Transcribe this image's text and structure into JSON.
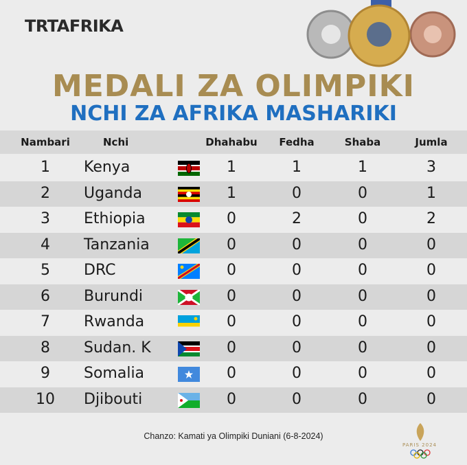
{
  "brand": "TRTAFRIKA",
  "title": "MEDALI ZA OLIMPIKI",
  "subtitle": "NCHI ZA AFRIKA MASHARIKI",
  "table": {
    "headers": [
      "Nambari",
      "Nchi",
      "Dhahabu",
      "Fedha",
      "Shaba",
      "Jumla"
    ],
    "rows": [
      [
        "1",
        "Kenya",
        "1",
        "1",
        "1",
        "3"
      ],
      [
        "2",
        "Uganda",
        "1",
        "0",
        "0",
        "1"
      ],
      [
        "3",
        "Ethiopia",
        "0",
        "2",
        "0",
        "2"
      ],
      [
        "4",
        "Tanzania",
        "0",
        "0",
        "0",
        "0"
      ],
      [
        "5",
        "DRC",
        "0",
        "0",
        "0",
        "0"
      ],
      [
        "6",
        "Burundi",
        "0",
        "0",
        "0",
        "0"
      ],
      [
        "7",
        "Rwanda",
        "0",
        "0",
        "0",
        "0"
      ],
      [
        "8",
        "Sudan. K",
        "0",
        "0",
        "0",
        "0"
      ],
      [
        "9",
        "Somalia",
        "0",
        "0",
        "0",
        "0"
      ],
      [
        "10",
        "Djibouti",
        "0",
        "0",
        "0",
        "0"
      ]
    ]
  },
  "source": "Chanzo: Kamati ya Olimpiki Duniani (6-8-2024)",
  "logo": "PARIS 2024"
}
